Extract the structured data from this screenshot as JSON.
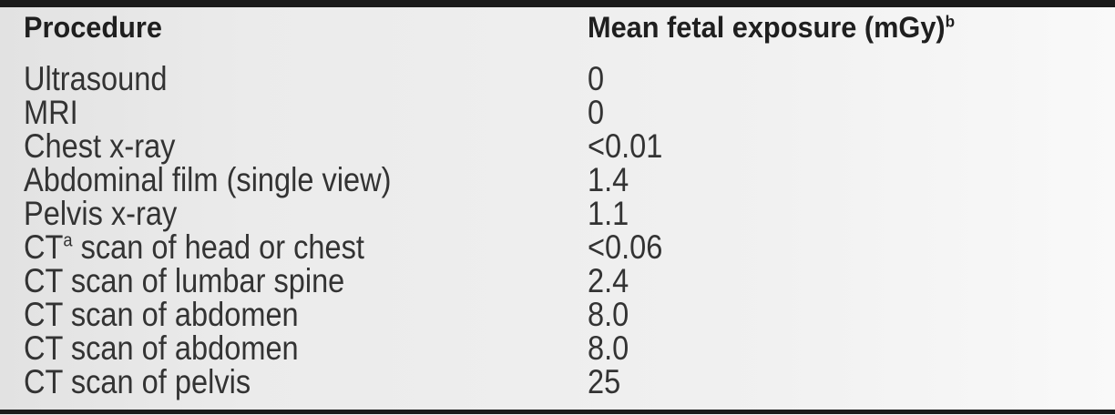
{
  "colors": {
    "rule": "#1b1b1b",
    "header_text": "#1f1f1f",
    "body_text": "#333333",
    "background_left": "#e2e2e2",
    "background_right": "#f9f9f9"
  },
  "table": {
    "header": {
      "procedure_label": "Procedure",
      "exposure_label": "Mean fetal exposure (mGy)",
      "exposure_sup": "b"
    },
    "rows": [
      {
        "pre": "Ultrasound",
        "sup": "",
        "post": "",
        "value": "0"
      },
      {
        "pre": "MRI",
        "sup": "",
        "post": "",
        "value": "0"
      },
      {
        "pre": "Chest x-ray",
        "sup": "",
        "post": "",
        "value": "<0.01"
      },
      {
        "pre": "Abdominal film (single view)",
        "sup": "",
        "post": "",
        "value": "1.4"
      },
      {
        "pre": "Pelvis x-ray",
        "sup": "",
        "post": "",
        "value": "1.1"
      },
      {
        "pre": "CT",
        "sup": "a",
        "post": " scan of head or chest",
        "value": "<0.06"
      },
      {
        "pre": "CT scan of lumbar spine",
        "sup": "",
        "post": "",
        "value": "2.4"
      },
      {
        "pre": "CT scan of abdomen",
        "sup": "",
        "post": "",
        "value": "8.0"
      },
      {
        "pre": "CT scan of abdomen",
        "sup": "",
        "post": "",
        "value": "8.0"
      },
      {
        "pre": "CT scan of pelvis",
        "sup": "",
        "post": "",
        "value": "25"
      }
    ]
  },
  "chart_data": {
    "type": "table",
    "columns": [
      "Procedure",
      "Mean fetal exposure (mGy)^b"
    ],
    "rows": [
      [
        "Ultrasound",
        "0"
      ],
      [
        "MRI",
        "0"
      ],
      [
        "Chest x-ray",
        "<0.01"
      ],
      [
        "Abdominal film (single view)",
        "1.4"
      ],
      [
        "Pelvis x-ray",
        "1.1"
      ],
      [
        "CT^a scan of head or chest",
        "<0.06"
      ],
      [
        "CT scan of lumbar spine",
        "2.4"
      ],
      [
        "CT scan of abdomen",
        "8.0"
      ],
      [
        "CT scan of abdomen",
        "8.0"
      ],
      [
        "CT scan of pelvis",
        "25"
      ]
    ]
  }
}
